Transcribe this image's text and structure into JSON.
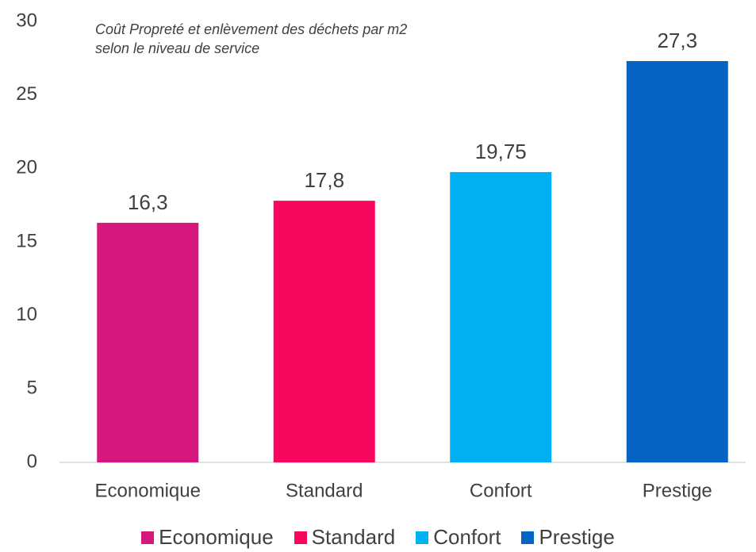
{
  "chart_data": {
    "type": "bar",
    "title": "Coût Propreté et enlèvement des déchets par m2 selon le niveau de service",
    "categories": [
      "Economique",
      "Standard",
      "Confort",
      "Prestige"
    ],
    "values": [
      16.3,
      17.8,
      19.75,
      27.3
    ],
    "value_labels": [
      "16,3",
      "17,8",
      "19,75",
      "27,3"
    ],
    "colors": [
      "#d5177e",
      "#f8075f",
      "#00b0f0",
      "#0563c1"
    ],
    "ylim": [
      0,
      30
    ],
    "yticks": [
      0,
      5,
      10,
      15,
      20,
      25,
      30
    ],
    "grid": false,
    "legend": "bottom"
  }
}
